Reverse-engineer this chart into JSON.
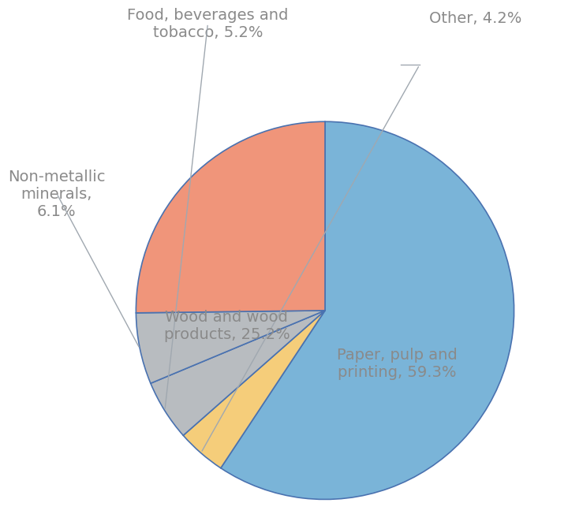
{
  "values": [
    59.3,
    25.2,
    6.1,
    5.2,
    4.2
  ],
  "slice_colors": [
    "#7ab4d8",
    "#f0957a",
    "#b8bcc0",
    "#b8bcc0",
    "#f5cd7a"
  ],
  "text_color": "#8a8a8a",
  "edge_color": "#4472c4",
  "background_color": "#ffffff",
  "font_size": 14,
  "startangle": 90,
  "labels": [
    "Paper, pulp and\nprinting, 59.3%",
    "Wood and wood\nproducts, 25.2%",
    "Non-metallic\nminerals,\n6.1%",
    "Food, beverages and\ntobacco, 5.2%",
    "Other, 4.2%"
  ]
}
